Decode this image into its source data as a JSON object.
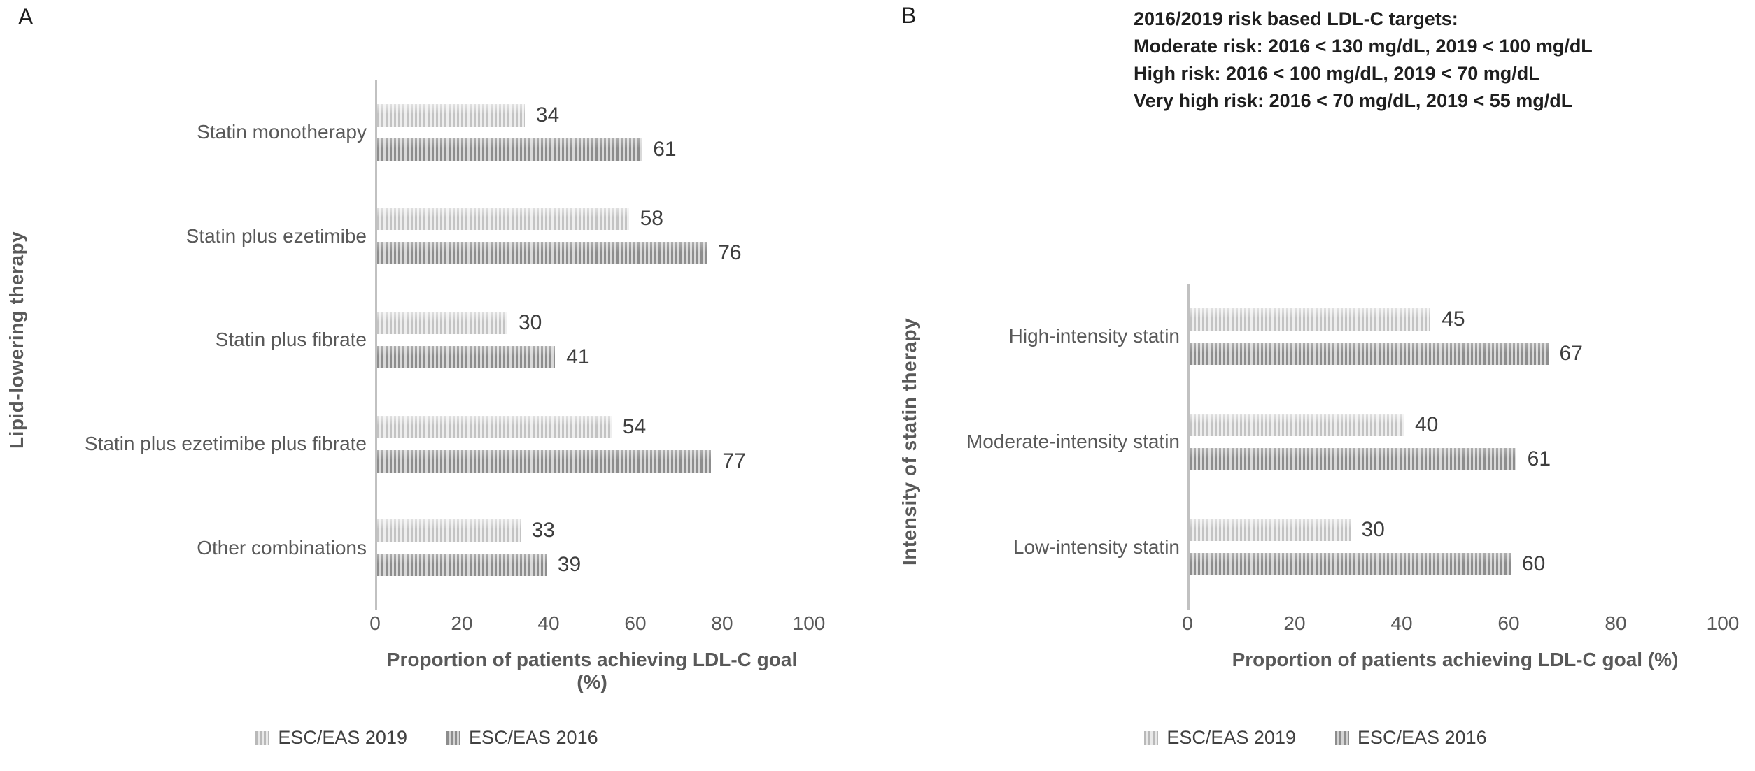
{
  "annotation": {
    "lines": [
      "2016/2019 risk based LDL-C targets:",
      "Moderate risk: 2016 < 130 mg/dL, 2019 < 100 mg/dL",
      "High risk: 2016 < 100 mg/dL, 2019 < 70 mg/dL",
      "Very high risk: 2016 < 70 mg/dL, 2019 < 55 mg/dL"
    ]
  },
  "colors": {
    "series_esc_eas_2019_stripe": "#c3c3c3",
    "series_esc_eas_2019_fill": "#eeeeee",
    "series_esc_eas_2016_stripe": "#8d8d8d",
    "series_esc_eas_2016_fill": "#d9d9d9",
    "axis_line": "#c1c1c1",
    "text": "#595959"
  },
  "chart_data": [
    {
      "type": "bar",
      "orientation": "horizontal",
      "panel_label": "A",
      "ylabel": "Lipid-lowering therapy",
      "xlabel": "Proportion of patients achieving LDL-C goal (%)",
      "categories": [
        "Statin monotherapy",
        "Statin plus ezetimibe",
        "Statin plus fibrate",
        "Statin plus ezetimibe plus fibrate",
        "Other combinations"
      ],
      "series": [
        {
          "name": "ESC/EAS 2019",
          "values": [
            34,
            58,
            30,
            54,
            33
          ]
        },
        {
          "name": "ESC/EAS 2016",
          "values": [
            61,
            76,
            41,
            77,
            39
          ]
        }
      ],
      "xlim": [
        0,
        100
      ],
      "xticks": [
        0,
        20,
        40,
        60,
        80,
        100
      ],
      "grid": false,
      "value_labels": true,
      "legend_position": "bottom"
    },
    {
      "type": "bar",
      "orientation": "horizontal",
      "panel_label": "B",
      "ylabel": "Intensity of statin therapy",
      "xlabel": "Proportion of patients achieving LDL-C goal (%)",
      "categories": [
        "High-intensity statin",
        "Moderate-intensity statin",
        "Low-intensity statin"
      ],
      "series": [
        {
          "name": "ESC/EAS 2019",
          "values": [
            45,
            40,
            30
          ]
        },
        {
          "name": "ESC/EAS 2016",
          "values": [
            67,
            61,
            60
          ]
        }
      ],
      "xlim": [
        0,
        100
      ],
      "xticks": [
        0,
        20,
        40,
        60,
        80,
        100
      ],
      "grid": false,
      "value_labels": true,
      "legend_position": "bottom"
    }
  ]
}
